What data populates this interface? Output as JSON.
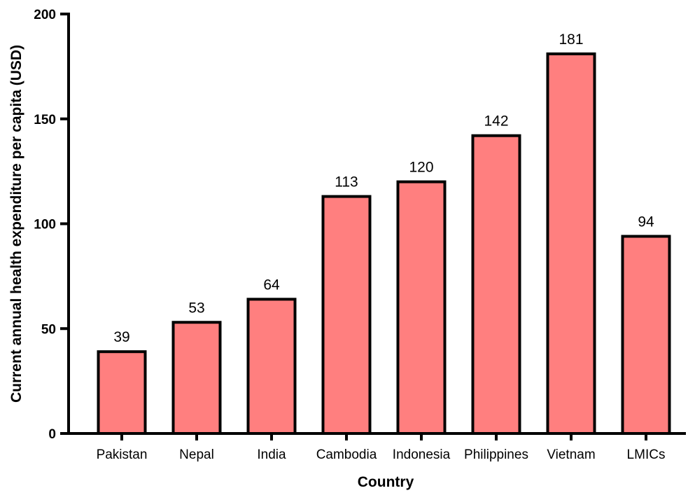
{
  "chart_data": {
    "type": "bar",
    "title": "",
    "xlabel": "Country",
    "ylabel": "Current annual health expenditure per capita  (USD)",
    "categories": [
      "Pakistan",
      "Nepal",
      "India",
      "Cambodia",
      "Indonesia",
      "Philippines",
      "Vietnam",
      "LMICs"
    ],
    "values": [
      39,
      53,
      64,
      113,
      120,
      142,
      181,
      94
    ],
    "data_labels": [
      "39",
      "53",
      "64",
      "113",
      "120",
      "142",
      "181",
      "94"
    ],
    "ylim": [
      0,
      200
    ],
    "yticks": [
      0,
      50,
      100,
      150,
      200
    ],
    "ytick_labels": [
      "0",
      "50",
      "100",
      "150",
      "200"
    ],
    "grid": false,
    "legend": "none",
    "colors": {
      "bar_fill": "#ff7f7f",
      "bar_stroke": "#000000",
      "axis": "#000000"
    }
  }
}
